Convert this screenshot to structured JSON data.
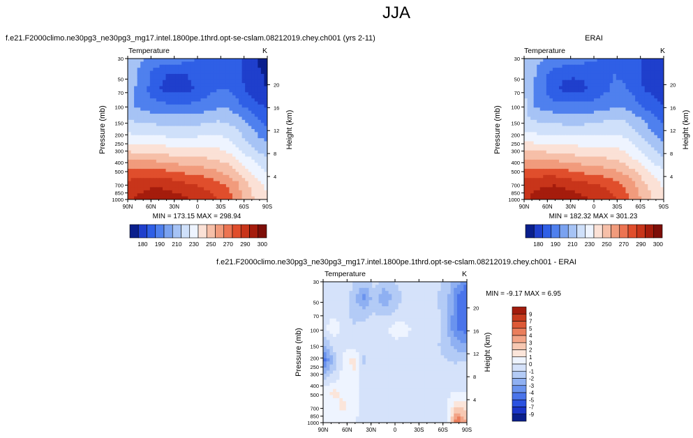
{
  "page_title": "JJA",
  "colors": {
    "seq": [
      "#0a1f8c",
      "#1f3fcc",
      "#2f5fe6",
      "#4f80ee",
      "#7aa2f0",
      "#a6c3f5",
      "#cfe0fa",
      "#eef4ff",
      "#fbe1d6",
      "#f6bfa8",
      "#f19b7c",
      "#ec7452",
      "#e04e2c",
      "#c8351a",
      "#a51c0c",
      "#7d0e08"
    ],
    "diff": [
      "#0a1f8c",
      "#1a35c8",
      "#2b52e0",
      "#4a74ea",
      "#6a93ee",
      "#8fb0f2",
      "#b3cbf6",
      "#d5e2fa",
      "#eef4ff",
      "#fbe5da",
      "#f7c8b2",
      "#f2a487",
      "#ea7e5c",
      "#dd5936",
      "#c63b1e",
      "#a21c0d"
    ],
    "frame": "#000000"
  },
  "chart_data": [
    {
      "id": "top-left",
      "type": "heatmap",
      "title": "f.e21.F2000climo.ne30pg3_ne30pg3_mg17.intel.1800pe.1thrd.opt-se-cslam.08212019.chey.ch001 (yrs 2-11)",
      "left_label": "Temperature",
      "right_label": "K",
      "xlabel": "",
      "ylabel": "Pressure (mb)",
      "y2label": "Height (km)",
      "x_ticks": [
        "90N",
        "60N",
        "30N",
        "0",
        "30S",
        "60S",
        "90S"
      ],
      "y_ticks": [
        "30",
        "50",
        "70",
        "100",
        "150",
        "200",
        "250",
        "300",
        "400",
        "500",
        "700",
        "850",
        "1000"
      ],
      "y2_ticks": [
        "20",
        "16",
        "12",
        "8",
        "4"
      ],
      "stats": "MIN = 173.15  MAX = 298.94",
      "colorbar_ticks": [
        "180",
        "190",
        "210",
        "230",
        "250",
        "270",
        "290",
        "300"
      ],
      "x_range": [
        90,
        -90
      ],
      "y_range": [
        30,
        1000
      ],
      "field": [
        [
          215,
          212,
          209,
          208,
          207,
          205,
          203,
          200,
          198,
          196,
          194,
          191,
          188,
          180,
          174
        ],
        [
          214,
          210,
          202,
          193,
          190,
          190,
          190,
          193,
          198,
          199,
          198,
          192,
          186,
          182,
          178
        ],
        [
          213,
          209,
          200,
          191,
          187,
          186,
          188,
          191,
          197,
          200,
          200,
          196,
          188,
          184,
          180
        ],
        [
          212,
          208,
          205,
          203,
          202,
          202,
          202,
          203,
          205,
          207,
          208,
          203,
          197,
          192,
          188
        ],
        [
          221,
          219,
          218,
          217,
          216,
          216,
          216,
          217,
          219,
          220,
          219,
          215,
          209,
          203,
          197
        ],
        [
          233,
          232,
          231,
          231,
          230,
          230,
          230,
          230,
          231,
          231,
          229,
          224,
          217,
          211,
          206
        ],
        [
          251,
          250,
          250,
          248,
          247,
          246,
          245,
          245,
          244,
          243,
          240,
          234,
          227,
          221,
          216
        ],
        [
          269,
          270,
          270,
          269,
          267,
          265,
          263,
          262,
          260,
          257,
          254,
          247,
          240,
          233,
          227
        ],
        [
          283,
          286,
          287,
          288,
          286,
          284,
          281,
          279,
          277,
          273,
          268,
          261,
          251,
          243,
          237
        ],
        [
          287,
          292,
          295,
          297,
          296,
          294,
          291,
          288,
          285,
          281,
          275,
          266,
          256,
          248,
          241
        ]
      ]
    },
    {
      "id": "top-right",
      "type": "heatmap",
      "title": "ERAI",
      "left_label": "Temperature",
      "right_label": "K",
      "xlabel": "",
      "ylabel": "Pressure (mb)",
      "y2label": "Height (km)",
      "x_ticks": [
        "90N",
        "60N",
        "30N",
        "0",
        "30S",
        "60S",
        "90S"
      ],
      "y_ticks": [
        "30",
        "50",
        "70",
        "100",
        "150",
        "200",
        "250",
        "300",
        "400",
        "500",
        "700",
        "850",
        "1000"
      ],
      "y2_ticks": [
        "20",
        "16",
        "12",
        "8",
        "4"
      ],
      "stats": "MIN = 182.32  MAX = 301.23",
      "colorbar_ticks": [
        "180",
        "190",
        "210",
        "230",
        "250",
        "270",
        "290",
        "300"
      ],
      "x_range": [
        90,
        -90
      ],
      "y_range": [
        30,
        1000
      ],
      "field": [
        [
          216,
          213,
          210,
          209,
          208,
          206,
          204,
          201,
          199,
          197,
          195,
          192,
          189,
          185,
          183
        ],
        [
          215,
          211,
          203,
          194,
          191,
          191,
          191,
          194,
          199,
          200,
          199,
          194,
          188,
          185,
          183
        ],
        [
          220,
          210,
          201,
          192,
          188,
          187,
          189,
          192,
          198,
          201,
          201,
          197,
          190,
          187,
          185
        ],
        [
          224,
          209,
          206,
          204,
          203,
          203,
          203,
          204,
          206,
          208,
          209,
          204,
          198,
          194,
          190
        ],
        [
          222,
          220,
          219,
          218,
          217,
          217,
          217,
          218,
          220,
          221,
          220,
          216,
          210,
          204,
          199
        ],
        [
          234,
          233,
          232,
          232,
          231,
          231,
          231,
          231,
          232,
          232,
          230,
          225,
          218,
          212,
          207
        ],
        [
          252,
          251,
          251,
          249,
          248,
          247,
          246,
          246,
          245,
          244,
          241,
          235,
          228,
          222,
          217
        ],
        [
          270,
          271,
          271,
          270,
          268,
          266,
          264,
          263,
          261,
          258,
          255,
          248,
          241,
          234,
          228
        ],
        [
          284,
          287,
          288,
          289,
          287,
          285,
          282,
          280,
          278,
          274,
          269,
          262,
          252,
          244,
          238
        ],
        [
          288,
          293,
          296,
          298,
          297,
          295,
          292,
          289,
          286,
          282,
          276,
          267,
          257,
          249,
          242
        ]
      ]
    },
    {
      "id": "bottom",
      "type": "heatmap",
      "title": "f.e21.F2000climo.ne30pg3_ne30pg3_mg17.intel.1800pe.1thrd.opt-se-cslam.08212019.chey.ch001 - ERAI",
      "left_label": "Temperature",
      "right_label": "K",
      "xlabel": "",
      "ylabel": "Pressure (mb)",
      "y2label": "Height (km)",
      "x_ticks": [
        "90N",
        "60N",
        "30N",
        "0",
        "30S",
        "60S",
        "90S"
      ],
      "y_ticks": [
        "30",
        "50",
        "70",
        "100",
        "150",
        "200",
        "250",
        "300",
        "400",
        "500",
        "700",
        "850",
        "1000"
      ],
      "y2_ticks": [
        "20",
        "16",
        "12",
        "8",
        "4"
      ],
      "stats": "MIN = -9.17  MAX =  6.95",
      "colorbar_ticks": [
        "9",
        "7",
        "5",
        "4",
        "3",
        "2",
        "1",
        "0",
        "-1",
        "-2",
        "-3",
        "-4",
        "-5",
        "-7",
        "-9"
      ],
      "x_range": [
        90,
        -90
      ],
      "y_range": [
        30,
        1000
      ],
      "field": [
        [
          -0.5,
          -0.5,
          -0.4,
          -1.0,
          -1.4,
          -0.8,
          -1.2,
          -1.0,
          -0.6,
          -0.5,
          -0.6,
          -0.8,
          -1.2,
          -2.5,
          -4.0
        ],
        [
          -0.5,
          -0.3,
          -0.3,
          -1.5,
          -3.5,
          -1.2,
          -3.2,
          -1.5,
          -0.8,
          -0.6,
          -0.8,
          -0.9,
          -1.5,
          -4.0,
          -5.0
        ],
        [
          -0.4,
          -0.2,
          -0.3,
          -1.6,
          -1.4,
          -1.0,
          -1.2,
          -1.0,
          -0.5,
          -0.5,
          -0.6,
          -0.8,
          -1.4,
          -4.2,
          -5.0
        ],
        [
          -0.3,
          0.5,
          -0.2,
          -0.8,
          -0.5,
          -0.4,
          -0.3,
          0.6,
          0.3,
          -0.3,
          -0.4,
          -0.6,
          -1.8,
          -4.0,
          -4.5
        ],
        [
          -2.0,
          -0.6,
          -0.3,
          -0.7,
          -0.5,
          -0.4,
          -0.4,
          -0.3,
          -0.3,
          -0.4,
          -0.6,
          -0.8,
          -1.5,
          -2.5,
          -3.0
        ],
        [
          -4.5,
          -1.8,
          0.2,
          1.5,
          -1.2,
          -0.3,
          -0.3,
          -0.3,
          -0.4,
          -0.4,
          -0.5,
          -0.8,
          -1.0,
          -1.2,
          -1.0
        ],
        [
          -1.5,
          -0.8,
          0.5,
          0.8,
          -0.6,
          -0.4,
          -0.4,
          -0.3,
          -0.5,
          -0.7,
          -0.6,
          -0.5,
          -0.5,
          -0.3,
          -0.2
        ],
        [
          0.6,
          1.2,
          0.8,
          0.3,
          -0.3,
          -0.3,
          -0.3,
          -0.2,
          -0.3,
          -0.4,
          -0.3,
          -0.2,
          -0.2,
          -0.1,
          0.0
        ],
        [
          0.4,
          0.8,
          1.2,
          0.3,
          -0.2,
          -0.2,
          -0.3,
          -0.3,
          -0.4,
          -0.4,
          -0.5,
          -0.6,
          -0.4,
          2.0,
          1.5
        ],
        [
          0.2,
          0.4,
          0.6,
          0.1,
          -0.4,
          -0.4,
          -0.3,
          -0.3,
          -0.5,
          -0.6,
          -0.7,
          -0.8,
          -0.5,
          5.5,
          3.0
        ]
      ]
    }
  ]
}
